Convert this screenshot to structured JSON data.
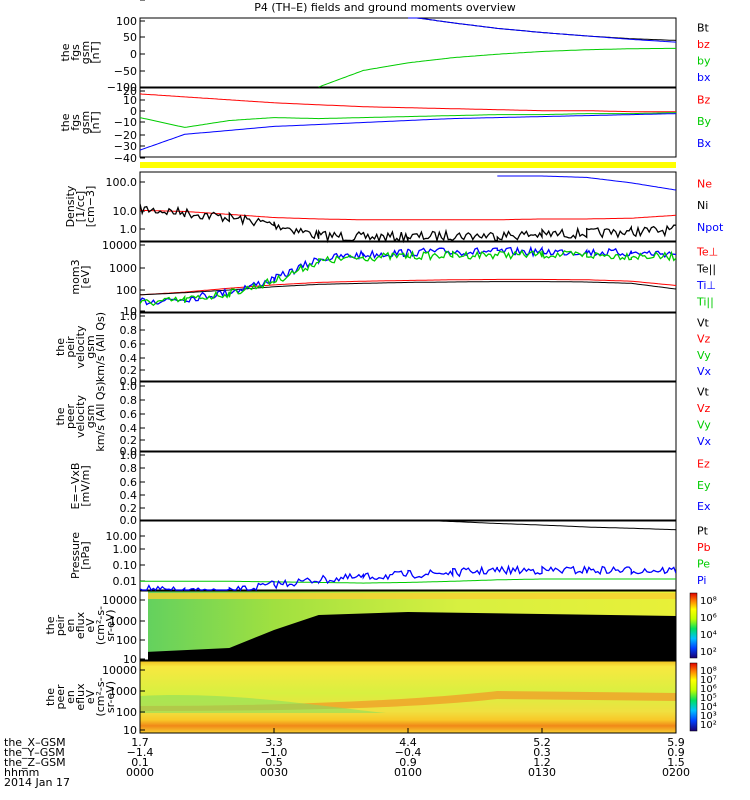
{
  "title": "P4 (TH–E) fields and ground moments overview",
  "panels": [
    {
      "id": "fgs-gsm",
      "ylabel": [
        "the",
        "fgs",
        "gsm",
        "[nT]"
      ],
      "yticks": [
        "100",
        "50",
        "0",
        "−50",
        "−100"
      ],
      "legend": [
        {
          "text": "Bt",
          "color": "#000000"
        },
        {
          "text": "bz",
          "color": "#ff0000"
        },
        {
          "text": "by",
          "color": "#00cc00"
        },
        {
          "text": "bx",
          "color": "#0000ff"
        }
      ]
    },
    {
      "id": "fgs-dsl",
      "ylabel": [
        "the",
        "fgs",
        "gsm",
        "[nT]"
      ],
      "yticks": [
        "20",
        "10",
        "0",
        "−10",
        "−20",
        "−30",
        "−40"
      ],
      "legend": [
        {
          "text": "Bz",
          "color": "#ff0000"
        },
        {
          "text": "By",
          "color": "#00cc00"
        },
        {
          "text": "Bx",
          "color": "#0000ff"
        }
      ]
    },
    {
      "id": "density",
      "ylabel": [
        "Density",
        "[1/cc]",
        "[cm−3]"
      ],
      "yticks": [
        "100.0",
        "10.0",
        "1.0",
        "0.1"
      ],
      "legend": [
        {
          "text": "Ne",
          "color": "#ff0000"
        },
        {
          "text": "Ni",
          "color": "#000000"
        },
        {
          "text": "Npot",
          "color": "#0000ff"
        }
      ]
    },
    {
      "id": "temperature",
      "ylabel": [
        "mom3",
        "[eV]"
      ],
      "yticks": [
        "10000",
        "1000",
        "100",
        "10"
      ],
      "legend": [
        {
          "text": "Te⊥",
          "color": "#ff0000"
        },
        {
          "text": "Te||",
          "color": "#000000"
        },
        {
          "text": "Ti⊥",
          "color": "#0000ff"
        },
        {
          "text": "Ti||",
          "color": "#00cc00"
        }
      ]
    },
    {
      "id": "peir-velocity",
      "ylabel": [
        "the",
        "peir",
        "velocity",
        "gsm",
        "km/s (All Qs)"
      ],
      "yticks": [
        "1.0",
        "0.8",
        "0.6",
        "0.4",
        "0.2",
        "0.0"
      ],
      "legend": [
        {
          "text": "Vt",
          "color": "#000000"
        },
        {
          "text": "Vz",
          "color": "#ff0000"
        },
        {
          "text": "Vy",
          "color": "#00cc00"
        },
        {
          "text": "Vx",
          "color": "#0000ff"
        }
      ]
    },
    {
      "id": "peer-velocity",
      "ylabel": [
        "the",
        "peer",
        "velocity",
        "gsm",
        "km/s (All Qs)"
      ],
      "yticks": [
        "1.0",
        "0.8",
        "0.6",
        "0.4",
        "0.2",
        "0.0"
      ],
      "legend": [
        {
          "text": "Vt",
          "color": "#000000"
        },
        {
          "text": "Vz",
          "color": "#ff0000"
        },
        {
          "text": "Vy",
          "color": "#00cc00"
        },
        {
          "text": "Vx",
          "color": "#0000ff"
        }
      ]
    },
    {
      "id": "efield",
      "ylabel": [
        "E=−VxB",
        "[mV/m]"
      ],
      "yticks": [
        "1.0",
        "0.8",
        "0.6",
        "0.4",
        "0.2",
        "0.0"
      ],
      "legend": [
        {
          "text": "Ez",
          "color": "#ff0000"
        },
        {
          "text": "Ey",
          "color": "#00cc00"
        },
        {
          "text": "Ex",
          "color": "#0000ff"
        }
      ]
    },
    {
      "id": "pressure",
      "ylabel": [
        "Pressure",
        "[nPa]"
      ],
      "yticks": [
        "10.00",
        "1.00",
        "0.10",
        "0.01"
      ],
      "legend": [
        {
          "text": "Pt",
          "color": "#000000"
        },
        {
          "text": "Pb",
          "color": "#ff0000"
        },
        {
          "text": "Pe",
          "color": "#00cc00"
        },
        {
          "text": "Pi",
          "color": "#0000ff"
        }
      ]
    },
    {
      "id": "peir-spec",
      "ylabel": [
        "the",
        "peir",
        "en",
        "eflux",
        "eV",
        "(cm²-s-",
        "sr-eV)"
      ],
      "yticks": [
        "10000",
        "1000",
        "100",
        "10"
      ],
      "colorbar": [
        "10⁸",
        "10⁶",
        "10⁴",
        "10²"
      ]
    },
    {
      "id": "peer-spec",
      "ylabel": [
        "the",
        "peer",
        "en",
        "eflux",
        "eV",
        "(cm²-s-",
        "sr-eV)"
      ],
      "yticks": [
        "10000",
        "1000",
        "100",
        "10"
      ],
      "colorbar": [
        "10⁸",
        "10⁷",
        "10⁶",
        "10⁵",
        "10⁴",
        "10³",
        "10²"
      ]
    }
  ],
  "xaxis": {
    "rows": [
      {
        "label": "the_X–GSM",
        "values": [
          "1.7",
          "3.3",
          "4.4",
          "5.2",
          "5.9"
        ]
      },
      {
        "label": "the_Y–GSM",
        "values": [
          "−1.4",
          "−1.0",
          "−0.4",
          "0.3",
          "0.9"
        ]
      },
      {
        "label": "the_Z–GSM",
        "values": [
          "0.1",
          "0.5",
          "0.9",
          "1.2",
          "1.5"
        ]
      },
      {
        "label": "hhmm",
        "values": [
          "0000",
          "0030",
          "0100",
          "0130",
          "0200"
        ]
      }
    ],
    "date": "2014 Jan 17"
  },
  "chart_data": [
    {
      "type": "line",
      "panel": "fgs-gsm",
      "xlabel": "hhmm",
      "x_minutes": [
        0,
        10,
        20,
        30,
        40,
        50,
        60,
        70,
        80,
        90,
        100,
        110,
        120
      ],
      "ylim": [
        -100,
        100
      ],
      "series": [
        {
          "name": "Bt",
          "values": [
            null,
            null,
            null,
            null,
            null,
            null,
            104,
            86,
            70,
            58,
            48,
            40,
            35
          ]
        },
        {
          "name": "bz",
          "values": [
            null,
            null,
            null,
            null,
            null,
            null,
            null,
            null,
            null,
            null,
            null,
            null,
            null
          ]
        },
        {
          "name": "by",
          "values": [
            null,
            null,
            null,
            null,
            -100,
            -52,
            -30,
            -15,
            -5,
            3,
            8,
            11,
            12
          ]
        },
        {
          "name": "bx",
          "values": [
            null,
            null,
            null,
            null,
            null,
            null,
            104,
            86,
            70,
            58,
            48,
            38,
            30
          ]
        }
      ]
    },
    {
      "type": "line",
      "panel": "fgs-dsl",
      "xlabel": "hhmm",
      "x_minutes": [
        0,
        10,
        20,
        30,
        40,
        50,
        60,
        70,
        80,
        90,
        100,
        110,
        120
      ],
      "ylim": [
        -45,
        25
      ],
      "series": [
        {
          "name": "Bz",
          "values": [
            19,
            16,
            13,
            10,
            8,
            6,
            5,
            4,
            3,
            2,
            2,
            1,
            1
          ]
        },
        {
          "name": "By",
          "values": [
            -5,
            -15,
            -8,
            -5,
            -6,
            -5,
            -4,
            -3,
            -2,
            -2,
            -1,
            -1,
            0
          ]
        },
        {
          "name": "Bx",
          "values": [
            -38,
            -22,
            -18,
            -14,
            -12,
            -10,
            -8,
            -6,
            -5,
            -4,
            -3,
            -2,
            -1
          ]
        }
      ]
    },
    {
      "type": "line",
      "panel": "density",
      "xlabel": "hhmm",
      "x_minutes": [
        0,
        10,
        20,
        30,
        40,
        50,
        60,
        70,
        80,
        90,
        100,
        110,
        120
      ],
      "ylim": [
        0.03,
        200
      ],
      "yscale": "log",
      "series": [
        {
          "name": "Ne",
          "values": [
            1.5,
            1.3,
            0.9,
            0.6,
            0.5,
            0.45,
            0.45,
            0.45,
            0.45,
            0.5,
            0.5,
            0.55,
            0.8
          ]
        },
        {
          "name": "Ni",
          "values": [
            1.8,
            1.1,
            0.6,
            0.25,
            0.06,
            0.05,
            0.05,
            0.06,
            0.06,
            0.07,
            0.08,
            0.1,
            0.12
          ]
        },
        {
          "name": "Npot",
          "values": [
            null,
            null,
            null,
            null,
            null,
            null,
            null,
            null,
            120,
            120,
            100,
            50,
            20
          ]
        }
      ]
    },
    {
      "type": "line",
      "panel": "temperature",
      "xlabel": "hhmm",
      "x_minutes": [
        0,
        10,
        20,
        30,
        40,
        50,
        60,
        70,
        80,
        90,
        100,
        110,
        120
      ],
      "ylim": [
        10,
        15000
      ],
      "yscale": "log",
      "series": [
        {
          "name": "Te⊥",
          "values": [
            60,
            80,
            120,
            170,
            220,
            250,
            270,
            290,
            300,
            300,
            290,
            250,
            160
          ]
        },
        {
          "name": "Te||",
          "values": [
            60,
            75,
            100,
            140,
            180,
            200,
            220,
            230,
            240,
            240,
            230,
            200,
            110
          ]
        },
        {
          "name": "Ti⊥",
          "values": [
            30,
            40,
            80,
            300,
            2500,
            4000,
            5000,
            5500,
            5500,
            5500,
            5200,
            4800,
            4500
          ]
        },
        {
          "name": "Ti||",
          "values": [
            25,
            35,
            70,
            250,
            2000,
            3000,
            3500,
            3800,
            4000,
            4000,
            3800,
            3500,
            3200
          ]
        }
      ]
    },
    {
      "type": "line",
      "panel": "pressure",
      "xlabel": "hhmm",
      "x_minutes": [
        0,
        10,
        20,
        30,
        40,
        50,
        60,
        70,
        80,
        90,
        100,
        110,
        120
      ],
      "ylim": [
        0.005,
        30
      ],
      "yscale": "log",
      "series": [
        {
          "name": "Pt",
          "values": [
            null,
            null,
            null,
            null,
            null,
            null,
            35,
            28,
            22,
            18,
            14,
            12,
            10
          ]
        },
        {
          "name": "Pb",
          "values": [
            null,
            null,
            null,
            null,
            null,
            null,
            null,
            null,
            null,
            null,
            null,
            null,
            null
          ]
        },
        {
          "name": "Pe",
          "values": [
            0.015,
            0.015,
            0.015,
            0.014,
            0.013,
            0.012,
            0.013,
            0.015,
            0.018,
            0.02,
            0.02,
            0.02,
            0.02
          ]
        },
        {
          "name": "Pi",
          "values": [
            0.006,
            0.004,
            0.004,
            0.01,
            0.018,
            0.025,
            0.035,
            0.045,
            0.06,
            0.06,
            0.06,
            0.06,
            0.06
          ]
        }
      ]
    }
  ]
}
